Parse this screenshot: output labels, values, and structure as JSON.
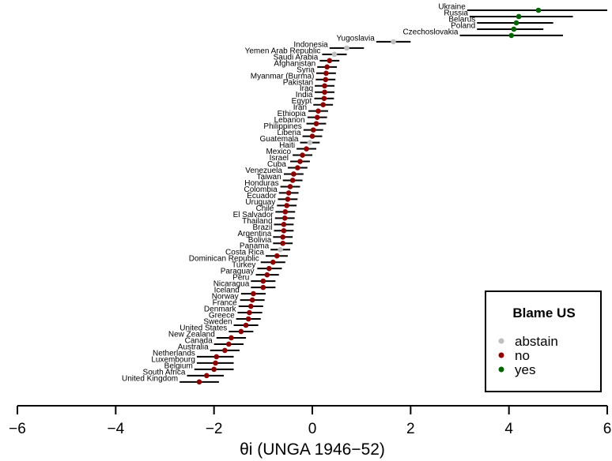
{
  "chart_data": {
    "type": "scatter",
    "xlabel": "θi (UNGA 1946−52)",
    "xlim": [
      -6,
      6
    ],
    "xticks": [
      -6,
      -4,
      -2,
      0,
      2,
      4,
      6
    ],
    "xtick_labels": [
      "−6",
      "−4",
      "−2",
      "0",
      "2",
      "4",
      "6"
    ],
    "grid": false,
    "legend": {
      "title": "Blame US",
      "placement": "bottom-right",
      "entries": [
        {
          "label": "abstain",
          "color": "#bfbfbf"
        },
        {
          "label": "no",
          "color": "#8b0000"
        },
        {
          "label": "yes",
          "color": "#006400"
        }
      ]
    },
    "series_note": "each country: point estimate with interval; color = vote on Blame US",
    "countries": [
      {
        "name": "Ukraine",
        "est": 4.6,
        "lo": 3.15,
        "hi": 6.0,
        "vote": "yes"
      },
      {
        "name": "Russia",
        "est": 4.2,
        "lo": 3.2,
        "hi": 5.3,
        "vote": "yes"
      },
      {
        "name": "Belarus",
        "est": 4.15,
        "lo": 3.35,
        "hi": 4.9,
        "vote": "yes"
      },
      {
        "name": "Poland",
        "est": 4.1,
        "lo": 3.35,
        "hi": 4.7,
        "vote": "yes"
      },
      {
        "name": "Czechoslovakia",
        "est": 4.05,
        "lo": 3.0,
        "hi": 5.1,
        "vote": "yes"
      },
      {
        "name": "Yugoslavia",
        "est": 1.65,
        "lo": 1.3,
        "hi": 2.0,
        "vote": "abstain"
      },
      {
        "name": "Indonesia",
        "est": 0.7,
        "lo": 0.35,
        "hi": 1.05,
        "vote": "abstain"
      },
      {
        "name": "Yemen Arab Republic",
        "est": 0.45,
        "lo": 0.2,
        "hi": 0.7,
        "vote": "abstain"
      },
      {
        "name": "Saudi Arabia",
        "est": 0.35,
        "lo": 0.15,
        "hi": 0.55,
        "vote": "no"
      },
      {
        "name": "Afghanistan",
        "est": 0.3,
        "lo": 0.1,
        "hi": 0.5,
        "vote": "no"
      },
      {
        "name": "Syria",
        "est": 0.28,
        "lo": 0.08,
        "hi": 0.48,
        "vote": "no"
      },
      {
        "name": "Myanmar (Burma)",
        "est": 0.27,
        "lo": 0.07,
        "hi": 0.47,
        "vote": "no"
      },
      {
        "name": "Pakistan",
        "est": 0.25,
        "lo": 0.05,
        "hi": 0.45,
        "vote": "no"
      },
      {
        "name": "Iraq",
        "est": 0.25,
        "lo": 0.05,
        "hi": 0.45,
        "vote": "no"
      },
      {
        "name": "India",
        "est": 0.24,
        "lo": 0.04,
        "hi": 0.44,
        "vote": "no"
      },
      {
        "name": "Egypt",
        "est": 0.22,
        "lo": 0.02,
        "hi": 0.42,
        "vote": "no"
      },
      {
        "name": "Iran",
        "est": 0.12,
        "lo": -0.08,
        "hi": 0.32,
        "vote": "no"
      },
      {
        "name": "Ethiopia",
        "est": 0.1,
        "lo": -0.1,
        "hi": 0.3,
        "vote": "no"
      },
      {
        "name": "Lebanon",
        "est": 0.08,
        "lo": -0.12,
        "hi": 0.28,
        "vote": "no"
      },
      {
        "name": "Philippines",
        "est": 0.02,
        "lo": -0.18,
        "hi": 0.22,
        "vote": "no"
      },
      {
        "name": "Liberia",
        "est": 0.0,
        "lo": -0.2,
        "hi": 0.2,
        "vote": "no"
      },
      {
        "name": "Guatemala",
        "est": -0.05,
        "lo": -0.25,
        "hi": 0.15,
        "vote": "abstain"
      },
      {
        "name": "Haiti",
        "est": -0.12,
        "lo": -0.32,
        "hi": 0.08,
        "vote": "no"
      },
      {
        "name": "Mexico",
        "est": -0.2,
        "lo": -0.4,
        "hi": 0.0,
        "vote": "no"
      },
      {
        "name": "Israel",
        "est": -0.25,
        "lo": -0.45,
        "hi": -0.05,
        "vote": "no"
      },
      {
        "name": "Cuba",
        "est": -0.3,
        "lo": -0.5,
        "hi": -0.1,
        "vote": "no"
      },
      {
        "name": "Venezuela",
        "est": -0.38,
        "lo": -0.58,
        "hi": -0.18,
        "vote": "no"
      },
      {
        "name": "Taiwan",
        "est": -0.4,
        "lo": -0.6,
        "hi": -0.2,
        "vote": "no"
      },
      {
        "name": "Honduras",
        "est": -0.45,
        "lo": -0.65,
        "hi": -0.25,
        "vote": "no"
      },
      {
        "name": "Colombia",
        "est": -0.48,
        "lo": -0.68,
        "hi": -0.28,
        "vote": "no"
      },
      {
        "name": "Ecuador",
        "est": -0.5,
        "lo": -0.7,
        "hi": -0.3,
        "vote": "no"
      },
      {
        "name": "Uruguay",
        "est": -0.52,
        "lo": -0.72,
        "hi": -0.32,
        "vote": "no"
      },
      {
        "name": "Chile",
        "est": -0.55,
        "lo": -0.75,
        "hi": -0.35,
        "vote": "no"
      },
      {
        "name": "El Salvador",
        "est": -0.56,
        "lo": -0.76,
        "hi": -0.36,
        "vote": "no"
      },
      {
        "name": "Thailand",
        "est": -0.58,
        "lo": -0.78,
        "hi": -0.38,
        "vote": "no"
      },
      {
        "name": "Brazil",
        "est": -0.58,
        "lo": -0.78,
        "hi": -0.38,
        "vote": "no"
      },
      {
        "name": "Argentina",
        "est": -0.6,
        "lo": -0.8,
        "hi": -0.4,
        "vote": "no"
      },
      {
        "name": "Bolivia",
        "est": -0.6,
        "lo": -0.8,
        "hi": -0.4,
        "vote": "no"
      },
      {
        "name": "Panama",
        "est": -0.65,
        "lo": -0.85,
        "hi": -0.45,
        "vote": "abstain"
      },
      {
        "name": "Costa Rica",
        "est": -0.72,
        "lo": -0.95,
        "hi": -0.5,
        "vote": "no"
      },
      {
        "name": "Dominican Republic",
        "est": -0.8,
        "lo": -1.05,
        "hi": -0.55,
        "vote": "no"
      },
      {
        "name": "Turkey",
        "est": -0.88,
        "lo": -1.12,
        "hi": -0.62,
        "vote": "no"
      },
      {
        "name": "Paraguay",
        "est": -0.92,
        "lo": -1.15,
        "hi": -0.68,
        "vote": "no"
      },
      {
        "name": "Peru",
        "est": -1.0,
        "lo": -1.25,
        "hi": -0.75,
        "vote": "no"
      },
      {
        "name": "Nicaragua",
        "est": -1.0,
        "lo": -1.25,
        "hi": -0.75,
        "vote": "no"
      },
      {
        "name": "Iceland",
        "est": -1.2,
        "lo": -1.45,
        "hi": -0.95,
        "vote": "no"
      },
      {
        "name": "Norway",
        "est": -1.22,
        "lo": -1.47,
        "hi": -0.97,
        "vote": "no"
      },
      {
        "name": "France",
        "est": -1.25,
        "lo": -1.5,
        "hi": -1.0,
        "vote": "no"
      },
      {
        "name": "Denmark",
        "est": -1.28,
        "lo": -1.52,
        "hi": -1.02,
        "vote": "no"
      },
      {
        "name": "Greece",
        "est": -1.3,
        "lo": -1.55,
        "hi": -1.05,
        "vote": "no"
      },
      {
        "name": "Sweden",
        "est": -1.35,
        "lo": -1.6,
        "hi": -1.1,
        "vote": "no"
      },
      {
        "name": "United States",
        "est": -1.45,
        "lo": -1.7,
        "hi": -1.2,
        "vote": "no"
      },
      {
        "name": "New Zealand",
        "est": -1.65,
        "lo": -1.95,
        "hi": -1.35,
        "vote": "no"
      },
      {
        "name": "Canada",
        "est": -1.7,
        "lo": -2.0,
        "hi": -1.4,
        "vote": "no"
      },
      {
        "name": "Australia",
        "est": -1.78,
        "lo": -2.08,
        "hi": -1.48,
        "vote": "no"
      },
      {
        "name": "Netherlands",
        "est": -1.95,
        "lo": -2.35,
        "hi": -1.6,
        "vote": "no"
      },
      {
        "name": "Luxembourg",
        "est": -1.97,
        "lo": -2.35,
        "hi": -1.6,
        "vote": "no"
      },
      {
        "name": "Belgium",
        "est": -2.0,
        "lo": -2.4,
        "hi": -1.6,
        "vote": "no"
      },
      {
        "name": "South Africa",
        "est": -2.15,
        "lo": -2.55,
        "hi": -1.8,
        "vote": "no"
      },
      {
        "name": "United Kingdom",
        "est": -2.3,
        "lo": -2.7,
        "hi": -1.9,
        "vote": "no"
      }
    ]
  }
}
